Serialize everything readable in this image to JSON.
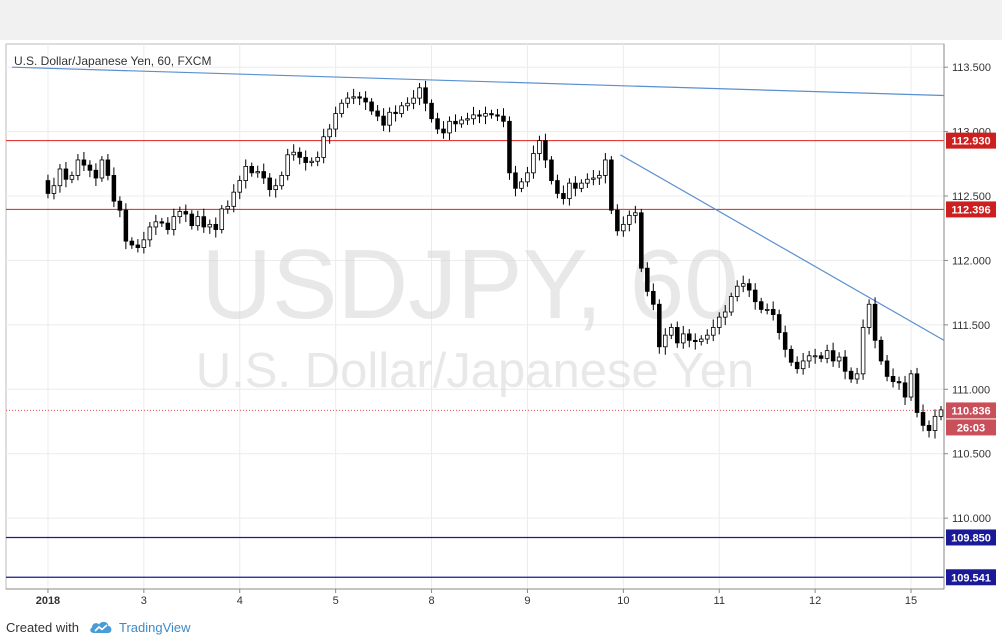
{
  "chart_data": {
    "type": "candlestick",
    "symbol_label": "U.S. Dollar/Japanese Yen, 60, FXCM",
    "watermark": {
      "symbol": "USDJPY, 60",
      "name": "U.S. Dollar/Japanese Yen"
    },
    "y_ticks": [
      "113.500",
      "113.000",
      "112.500",
      "112.000",
      "111.500",
      "111.000",
      "110.500",
      "110.000"
    ],
    "y_range": [
      109.45,
      113.68
    ],
    "x_ticks": [
      {
        "label": "2018",
        "index": 0
      },
      {
        "label": "3",
        "index": 16
      },
      {
        "label": "4",
        "index": 32
      },
      {
        "label": "5",
        "index": 48
      },
      {
        "label": "8",
        "index": 64
      },
      {
        "label": "9",
        "index": 80
      },
      {
        "label": "10",
        "index": 96
      },
      {
        "label": "11",
        "index": 112
      },
      {
        "label": "12",
        "index": 128
      },
      {
        "label": "15",
        "index": 144
      }
    ],
    "x_range": [
      -7,
      149.5
    ],
    "closes": [
      112.62,
      112.52,
      112.58,
      112.71,
      112.63,
      112.66,
      112.78,
      112.74,
      112.7,
      112.64,
      112.78,
      112.66,
      112.46,
      112.39,
      112.15,
      112.12,
      112.1,
      112.16,
      112.26,
      112.3,
      112.29,
      112.24,
      112.34,
      112.38,
      112.36,
      112.27,
      112.34,
      112.26,
      112.28,
      112.24,
      112.4,
      112.42,
      112.53,
      112.62,
      112.73,
      112.68,
      112.69,
      112.64,
      112.55,
      112.58,
      112.66,
      112.82,
      112.84,
      112.8,
      112.76,
      112.77,
      112.8,
      112.96,
      113.02,
      113.14,
      113.22,
      113.26,
      113.27,
      113.26,
      113.23,
      113.16,
      113.12,
      113.05,
      113.15,
      113.14,
      113.2,
      113.22,
      113.26,
      113.34,
      113.22,
      113.1,
      113.02,
      112.99,
      113.08,
      113.06,
      113.09,
      113.1,
      113.13,
      113.12,
      113.14,
      113.13,
      113.12,
      113.08,
      112.68,
      112.56,
      112.61,
      112.68,
      112.83,
      112.93,
      112.78,
      112.62,
      112.52,
      112.48,
      112.6,
      112.56,
      112.6,
      112.63,
      112.64,
      112.66,
      112.78,
      112.39,
      112.23,
      112.28,
      112.35,
      112.37,
      111.94,
      111.76,
      111.66,
      111.33,
      111.42,
      111.48,
      111.36,
      111.43,
      111.38,
      111.37,
      111.39,
      111.42,
      111.48,
      111.56,
      111.6,
      111.72,
      111.8,
      111.82,
      111.77,
      111.68,
      111.62,
      111.62,
      111.58,
      111.44,
      111.31,
      111.21,
      111.16,
      111.22,
      111.26,
      111.26,
      111.24,
      111.3,
      111.22,
      111.25,
      111.14,
      111.08,
      111.12,
      111.48,
      111.66,
      111.38,
      111.22,
      111.1,
      111.06,
      111.05,
      110.94,
      111.12,
      110.82,
      110.72,
      110.68,
      110.79,
      110.84
    ],
    "lines": {
      "horizontal_red": [
        112.93,
        112.396
      ],
      "horizontal_navy": [
        109.85,
        109.541
      ],
      "current_price": 110.836,
      "upper_trend": {
        "from": [
          -6,
          113.5
        ],
        "to": [
          149.5,
          113.28
        ]
      },
      "lower_trend": {
        "from": [
          95.5,
          112.82
        ],
        "to": [
          149.5,
          111.38
        ]
      }
    },
    "price_labels": [
      {
        "text": "112.930",
        "value": 112.93,
        "color": "#cc1f1f",
        "offset": 0
      },
      {
        "text": "112.396",
        "value": 112.396,
        "color": "#cc1f1f",
        "offset": 0
      },
      {
        "text": "110.836",
        "value": 110.836,
        "color": "#c9505a",
        "offset": 0
      },
      {
        "text": "26:03",
        "value": 110.836,
        "color": "#c9505a",
        "offset": 1
      },
      {
        "text": "109.850",
        "value": 109.85,
        "color": "#1a1a99",
        "offset": 0
      },
      {
        "text": "109.541",
        "value": 109.541,
        "color": "#1a1a99",
        "offset": 0
      }
    ],
    "colors": {
      "candle_up": "#ffffff",
      "candle_down": "#000000",
      "wick": "#000000",
      "red_line": "#e02020",
      "navy_line": "#1a1a99",
      "trend_line": "#5a8fd0",
      "current_line": "#e05050"
    }
  },
  "footer": {
    "created_label": "Created with",
    "brand_label": "TradingView",
    "logo_icon": "tradingview-cloud-icon"
  }
}
